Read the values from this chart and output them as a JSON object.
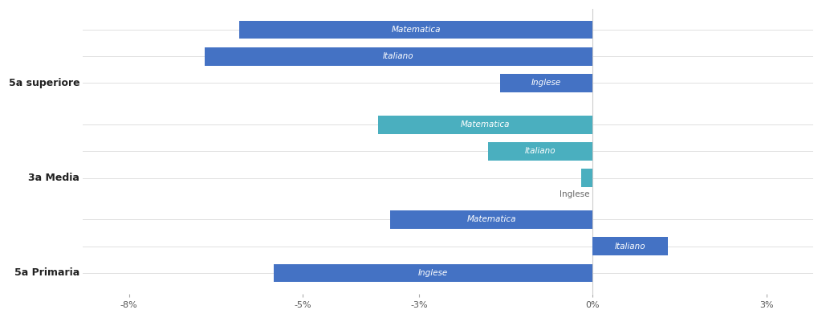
{
  "groups": [
    {
      "label": "5a superiore",
      "bars": [
        {
          "name": "Matematica",
          "value": -6.1,
          "color": "#4472C4"
        },
        {
          "name": "Italiano",
          "value": -6.7,
          "color": "#4472C4"
        },
        {
          "name": "Inglese",
          "value": -1.6,
          "color": "#4472C4"
        }
      ]
    },
    {
      "label": "3a Media",
      "bars": [
        {
          "name": "Matematica",
          "value": -3.7,
          "color": "#4AAFBF"
        },
        {
          "name": "Italiano",
          "value": -1.8,
          "color": "#4AAFBF"
        },
        {
          "name": "Inglese",
          "value": -0.2,
          "color": "#4AAFBF"
        }
      ]
    },
    {
      "label": "5a Primaria",
      "bars": [
        {
          "name": "Matematica",
          "value": -3.5,
          "color": "#4472C4"
        },
        {
          "name": "Italiano",
          "value": 1.3,
          "color": "#4472C4"
        },
        {
          "name": "Inglese",
          "value": -5.5,
          "color": "#4472C4"
        }
      ]
    }
  ],
  "xlim": [
    -8.8,
    3.8
  ],
  "xticks": [
    -8,
    -5,
    -3,
    0,
    3
  ],
  "xticklabels": [
    "-8%",
    "-5%",
    "-3%",
    "0%",
    "3%"
  ],
  "bar_height": 0.62,
  "background_color": "#ffffff",
  "grid_color": "#e0e0e0",
  "label_fontsize": 9,
  "bar_text_fontsize": 7.5,
  "tick_fontsize": 8
}
